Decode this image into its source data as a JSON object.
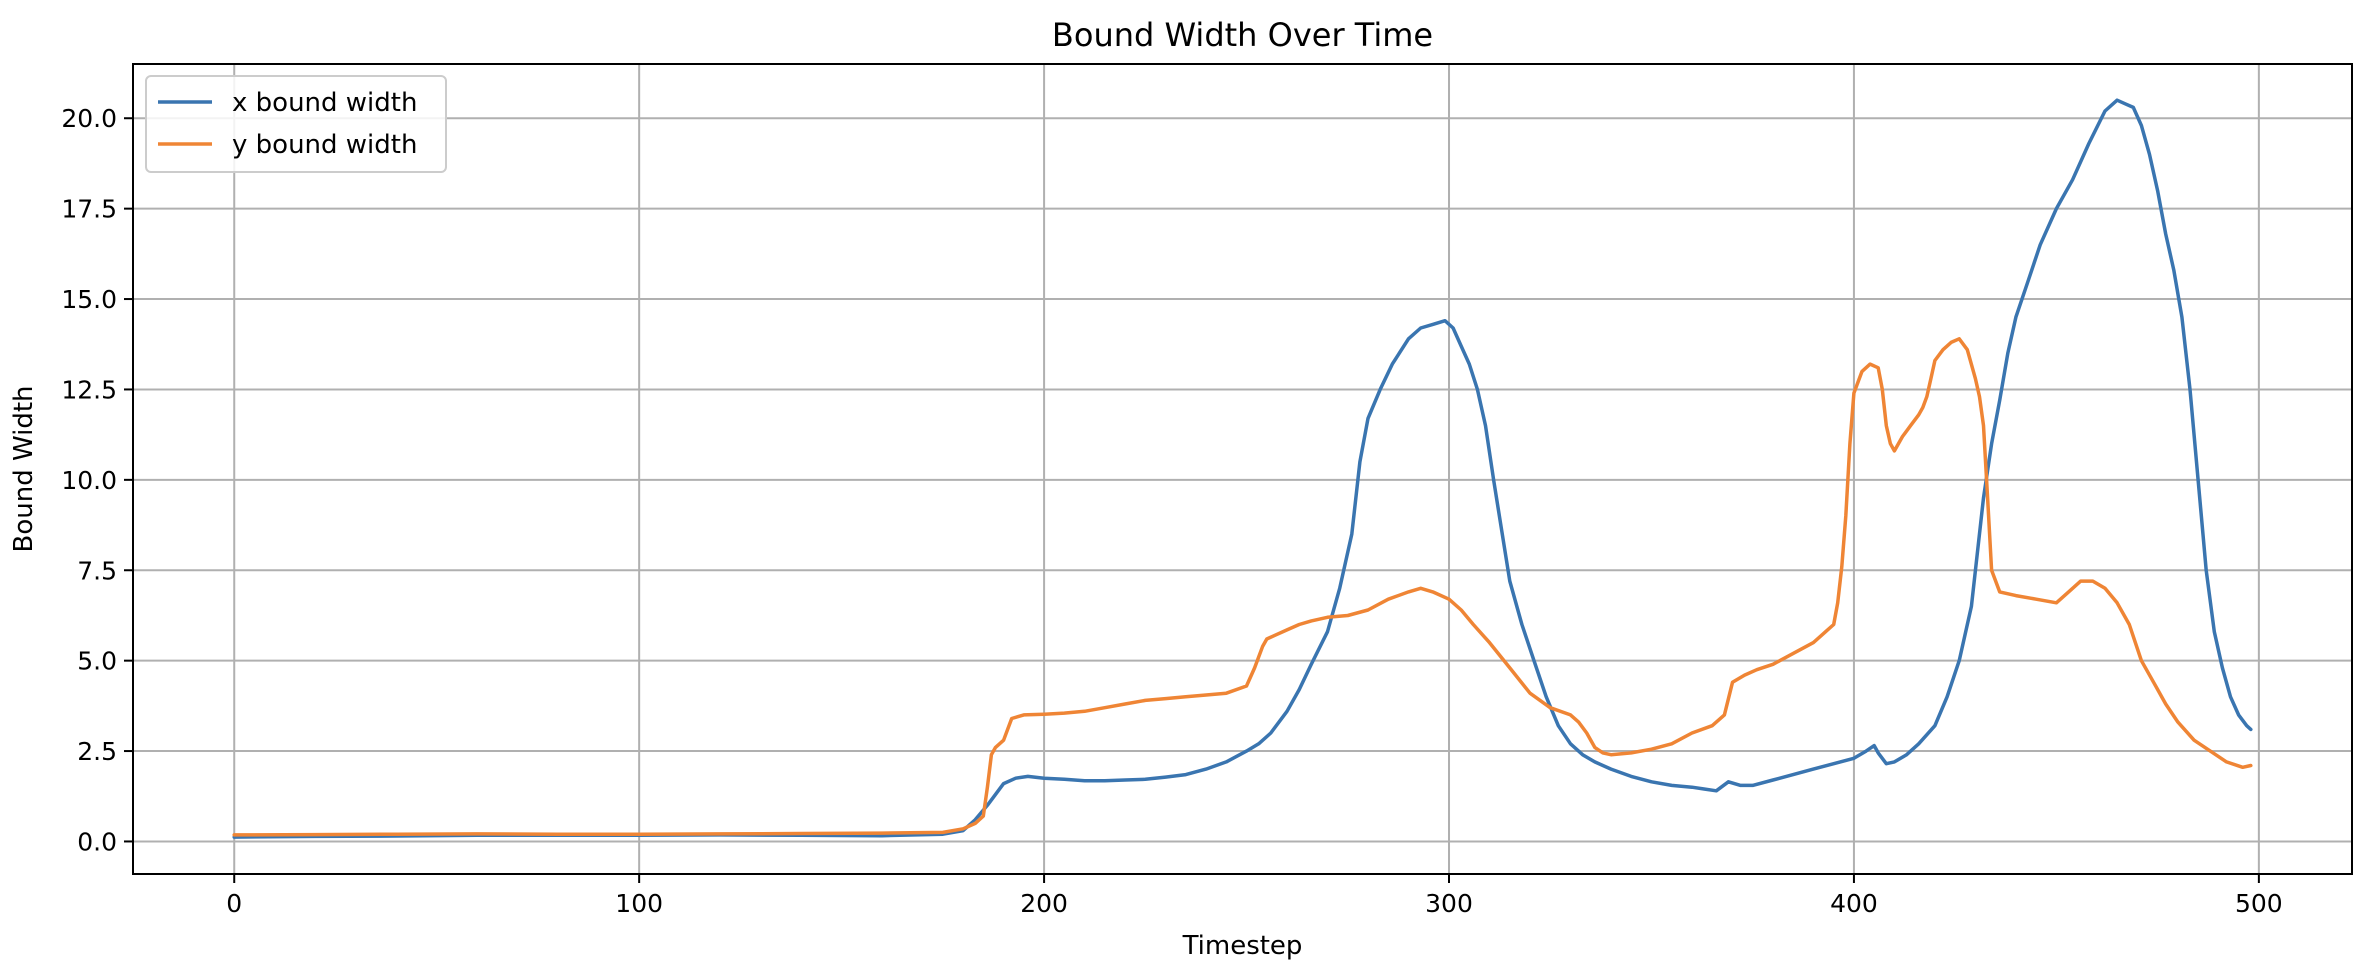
{
  "chart_data": {
    "type": "line",
    "title": "Bound Width Over Time",
    "xlabel": "Timestep",
    "ylabel": "Bound Width",
    "xlim": [
      -25,
      523
    ],
    "ylim": [
      -0.9,
      21.5
    ],
    "xticks": [
      0,
      100,
      200,
      300,
      400,
      500
    ],
    "yticks": [
      0.0,
      2.5,
      5.0,
      7.5,
      10.0,
      12.5,
      15.0,
      17.5,
      20.0
    ],
    "xtick_labels": [
      "0",
      "100",
      "200",
      "300",
      "400",
      "500"
    ],
    "ytick_labels": [
      "0.0",
      "2.5",
      "5.0",
      "7.5",
      "10.0",
      "12.5",
      "15.0",
      "17.5",
      "20.0"
    ],
    "grid": true,
    "legend_position": "upper-left",
    "series": [
      {
        "name": "x bound width",
        "color": "#3a75b0",
        "x": [
          0,
          20,
          40,
          60,
          80,
          100,
          120,
          140,
          160,
          175,
          180,
          183,
          186,
          188,
          190,
          193,
          196,
          200,
          205,
          210,
          215,
          220,
          225,
          230,
          235,
          240,
          245,
          250,
          253,
          256,
          260,
          263,
          266,
          270,
          273,
          276,
          278,
          280,
          283,
          286,
          290,
          293,
          296,
          299,
          301,
          303,
          305,
          307,
          309,
          311,
          313,
          315,
          318,
          321,
          324,
          327,
          330,
          333,
          336,
          340,
          345,
          350,
          355,
          360,
          363,
          366,
          369,
          372,
          375,
          380,
          385,
          390,
          395,
          400,
          403,
          405,
          406,
          408,
          410,
          413,
          416,
          420,
          423,
          426,
          429,
          432,
          434,
          436,
          438,
          440,
          443,
          446,
          450,
          454,
          458,
          462,
          465,
          467,
          469,
          471,
          473,
          475,
          477,
          479,
          481,
          483,
          485,
          487,
          489,
          491,
          493,
          495,
          497,
          498
        ],
        "y": [
          0.12,
          0.14,
          0.15,
          0.17,
          0.17,
          0.17,
          0.18,
          0.17,
          0.16,
          0.2,
          0.3,
          0.6,
          1.0,
          1.3,
          1.6,
          1.75,
          1.8,
          1.75,
          1.72,
          1.68,
          1.68,
          1.7,
          1.72,
          1.78,
          1.85,
          2.0,
          2.2,
          2.5,
          2.7,
          3.0,
          3.6,
          4.2,
          4.9,
          5.8,
          7.0,
          8.5,
          10.5,
          11.7,
          12.5,
          13.2,
          13.9,
          14.2,
          14.3,
          14.4,
          14.2,
          13.7,
          13.2,
          12.5,
          11.5,
          10.0,
          8.6,
          7.2,
          6.0,
          5.0,
          4.0,
          3.2,
          2.7,
          2.4,
          2.2,
          2.0,
          1.8,
          1.65,
          1.55,
          1.5,
          1.45,
          1.4,
          1.65,
          1.55,
          1.55,
          1.7,
          1.85,
          2.0,
          2.15,
          2.3,
          2.5,
          2.65,
          2.45,
          2.15,
          2.2,
          2.4,
          2.7,
          3.2,
          4.0,
          5.0,
          6.5,
          9.5,
          11.0,
          12.2,
          13.5,
          14.5,
          15.5,
          16.5,
          17.5,
          18.3,
          19.3,
          20.2,
          20.5,
          20.4,
          20.3,
          19.8,
          19.0,
          18.0,
          16.8,
          15.8,
          14.5,
          12.5,
          10.0,
          7.5,
          5.8,
          4.8,
          4.0,
          3.5,
          3.2,
          3.1
        ]
      },
      {
        "name": "y bound width",
        "color": "#ef8535",
        "x": [
          0,
          20,
          40,
          60,
          80,
          100,
          120,
          140,
          160,
          175,
          180,
          183,
          185,
          186,
          187,
          188,
          190,
          192,
          195,
          200,
          205,
          210,
          215,
          220,
          225,
          230,
          235,
          240,
          245,
          250,
          252,
          254,
          255,
          257,
          260,
          263,
          266,
          270,
          275,
          280,
          285,
          290,
          293,
          296,
          300,
          303,
          306,
          310,
          315,
          320,
          325,
          330,
          332,
          334,
          336,
          338,
          340,
          345,
          350,
          355,
          360,
          365,
          368,
          370,
          373,
          376,
          380,
          385,
          390,
          393,
          395,
          396,
          397,
          398,
          399,
          400,
          402,
          404,
          406,
          407,
          408,
          409,
          410,
          412,
          414,
          416,
          417,
          418,
          419,
          420,
          422,
          424,
          426,
          428,
          430,
          431,
          432,
          433,
          434,
          436,
          440,
          445,
          450,
          453,
          456,
          459,
          462,
          465,
          468,
          471,
          474,
          477,
          480,
          484,
          488,
          492,
          496,
          498
        ],
        "y": [
          0.18,
          0.19,
          0.2,
          0.21,
          0.2,
          0.2,
          0.21,
          0.22,
          0.23,
          0.25,
          0.35,
          0.5,
          0.7,
          1.5,
          2.4,
          2.6,
          2.8,
          3.4,
          3.5,
          3.52,
          3.55,
          3.6,
          3.7,
          3.8,
          3.9,
          3.95,
          4.0,
          4.05,
          4.1,
          4.3,
          4.8,
          5.4,
          5.6,
          5.7,
          5.85,
          6.0,
          6.1,
          6.2,
          6.25,
          6.4,
          6.7,
          6.9,
          7.0,
          6.9,
          6.7,
          6.4,
          6.0,
          5.5,
          4.8,
          4.1,
          3.7,
          3.5,
          3.3,
          3.0,
          2.6,
          2.45,
          2.4,
          2.45,
          2.55,
          2.7,
          3.0,
          3.2,
          3.5,
          4.4,
          4.6,
          4.75,
          4.9,
          5.2,
          5.5,
          5.8,
          6.0,
          6.6,
          7.6,
          9.0,
          11.0,
          12.4,
          13.0,
          13.2,
          13.1,
          12.5,
          11.5,
          11.0,
          10.8,
          11.2,
          11.5,
          11.8,
          12.0,
          12.3,
          12.8,
          13.3,
          13.6,
          13.8,
          13.9,
          13.6,
          12.8,
          12.3,
          11.5,
          9.5,
          7.5,
          6.9,
          6.8,
          6.7,
          6.6,
          6.9,
          7.2,
          7.2,
          7.0,
          6.6,
          6.0,
          5.0,
          4.4,
          3.8,
          3.3,
          2.8,
          2.5,
          2.2,
          2.05,
          2.1
        ]
      }
    ]
  }
}
